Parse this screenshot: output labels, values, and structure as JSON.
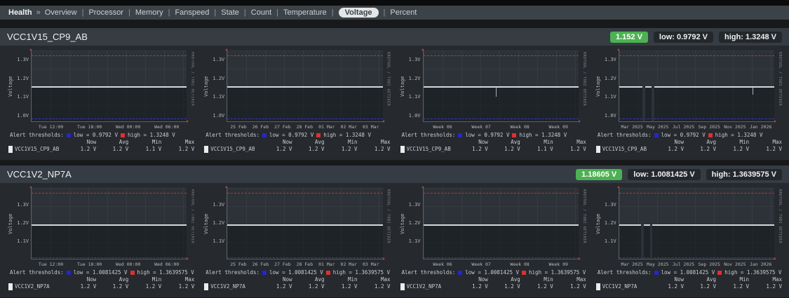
{
  "nav": {
    "root": "Health",
    "sep": "»",
    "items": [
      {
        "label": "Overview"
      },
      {
        "label": "Processor"
      },
      {
        "label": "Memory"
      },
      {
        "label": "Fanspeed"
      },
      {
        "label": "State"
      },
      {
        "label": "Count"
      },
      {
        "label": "Temperature"
      },
      {
        "label": "Voltage",
        "active": true
      },
      {
        "label": "Percent"
      }
    ]
  },
  "watermark": "RRDTOOL / TOBI OETIKER",
  "alert_label": "Alert thresholds:",
  "stats_header": [
    "Now",
    "Avg",
    "Min",
    "Max"
  ],
  "sections": [
    {
      "id": "vcc1v15_cp9_ab",
      "title": "VCC1V15_CP9_AB",
      "badge_current": "1.152 V",
      "badge_low": "low: 0.9792 V",
      "badge_high": "high: 1.3248 V",
      "series_name": "VCC1V15_CP9_AB",
      "legend_low": "low = 0.9792 V",
      "legend_high": "high = 1.3248 V",
      "ylabel": "Voltage",
      "ylim": [
        0.965,
        1.35
      ],
      "yticks": [
        1.3,
        1.2,
        1.1,
        1.0
      ],
      "value": 1.152,
      "low_threshold": 0.9792,
      "high_threshold": 1.3248,
      "graphs": [
        {
          "range": "day",
          "xticks": [
            "Tue 12:00",
            "Tue 18:00",
            "Wed 00:00",
            "Wed 06:00"
          ],
          "stats": [
            "1.2 V",
            "1.2 V",
            "1.1 V",
            "1.2 V"
          ]
        },
        {
          "range": "week",
          "xticks": [
            "25 Feb",
            "26 Feb",
            "27 Feb",
            "28 Feb",
            "01 Mar",
            "02 Mar",
            "03 Mar"
          ],
          "stats": [
            "1.2 V",
            "1.2 V",
            "1.2 V",
            "1.2 V"
          ]
        },
        {
          "range": "month",
          "xticks": [
            "Week 06",
            "Week 07",
            "Week 08",
            "Week 09"
          ],
          "stats": [
            "1.2 V",
            "1.2 V",
            "1.1 V",
            "1.2 V"
          ],
          "dips": [
            {
              "x": 47,
              "to": 1.1
            }
          ]
        },
        {
          "range": "year",
          "xticks": [
            "Mar 2025",
            "May 2025",
            "Jul 2025",
            "Sep 2025",
            "Nov 2025",
            "Jan 2026"
          ],
          "stats": [
            "1.2 V",
            "1.2 V",
            "1.2 V",
            "1.2 V"
          ],
          "gaps": [
            {
              "x": 15,
              "w": 2
            },
            {
              "x": 21,
              "w": 1.5
            }
          ],
          "dips": [
            {
              "x": 86,
              "to": 1.11
            }
          ]
        }
      ]
    },
    {
      "id": "vcc1v2_np7a",
      "title": "VCC1V2_NP7A",
      "badge_current": "1.18605 V",
      "badge_low": "low: 1.0081425 V",
      "badge_high": "high: 1.3639575 V",
      "series_name": "VCC1V2_NP7A",
      "legend_low": "low = 1.0081425 V",
      "legend_high": "high = 1.3639575 V",
      "ylabel": "Voltage",
      "ylim": [
        1.0,
        1.39
      ],
      "yticks": [
        1.3,
        1.2,
        1.1
      ],
      "value": 1.18605,
      "low_threshold": 1.0081425,
      "high_threshold": 1.3639575,
      "graphs": [
        {
          "range": "day",
          "xticks": [
            "Tue 12:00",
            "Tue 18:00",
            "Wed 00:00",
            "Wed 06:00"
          ],
          "stats": [
            "1.2 V",
            "1.2 V",
            "1.2 V",
            "1.2 V"
          ]
        },
        {
          "range": "week",
          "xticks": [
            "25 Feb",
            "26 Feb",
            "27 Feb",
            "28 Feb",
            "01 Mar",
            "02 Mar",
            "03 Mar"
          ],
          "stats": [
            "1.2 V",
            "1.2 V",
            "1.2 V",
            "1.2 V"
          ]
        },
        {
          "range": "month",
          "xticks": [
            "Week 06",
            "Week 07",
            "Week 08",
            "Week 09"
          ],
          "stats": [
            "1.2 V",
            "1.2 V",
            "1.2 V",
            "1.2 V"
          ]
        },
        {
          "range": "year",
          "xticks": [
            "Mar 2025",
            "May 2025",
            "Jul 2025",
            "Sep 2025",
            "Nov 2025",
            "Jan 2026"
          ],
          "stats": [
            "1.2 V",
            "1.2 V",
            "1.2 V",
            "1.2 V"
          ],
          "gaps": [
            {
              "x": 14,
              "w": 2
            },
            {
              "x": 20,
              "w": 1.5
            }
          ]
        }
      ]
    }
  ]
}
